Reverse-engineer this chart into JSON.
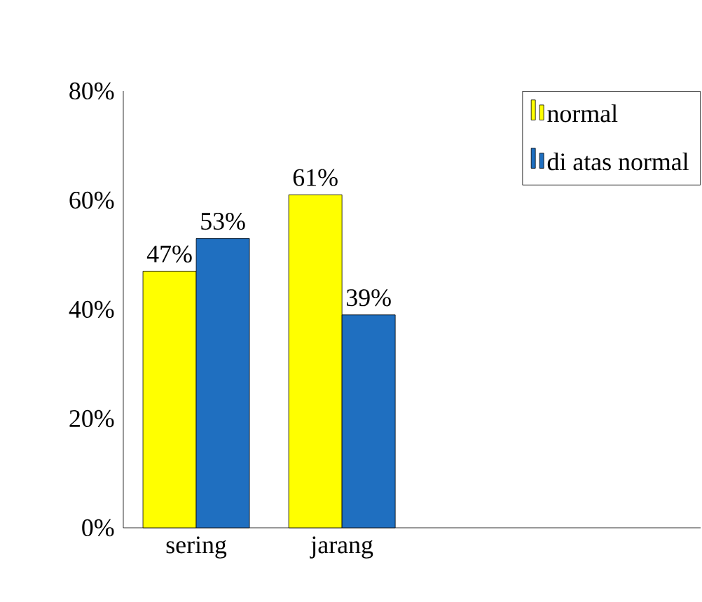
{
  "chart_data": {
    "type": "bar",
    "categories": [
      "sering",
      "jarang"
    ],
    "series": [
      {
        "name": "normal",
        "color": "#ffff00",
        "values": [
          47,
          61
        ],
        "value_labels": [
          "47%",
          "61%"
        ]
      },
      {
        "name": "di atas normal",
        "color": "#1f6fc0",
        "values": [
          53,
          39
        ],
        "value_labels": [
          "53%",
          "39%"
        ]
      }
    ],
    "ylim": [
      0,
      80
    ],
    "yticks": [
      {
        "value": 0,
        "label": "0%"
      },
      {
        "value": 20,
        "label": "20%"
      },
      {
        "value": 40,
        "label": "40%"
      },
      {
        "value": 60,
        "label": "60%"
      },
      {
        "value": 80,
        "label": "80%"
      }
    ],
    "legend": "top right"
  }
}
